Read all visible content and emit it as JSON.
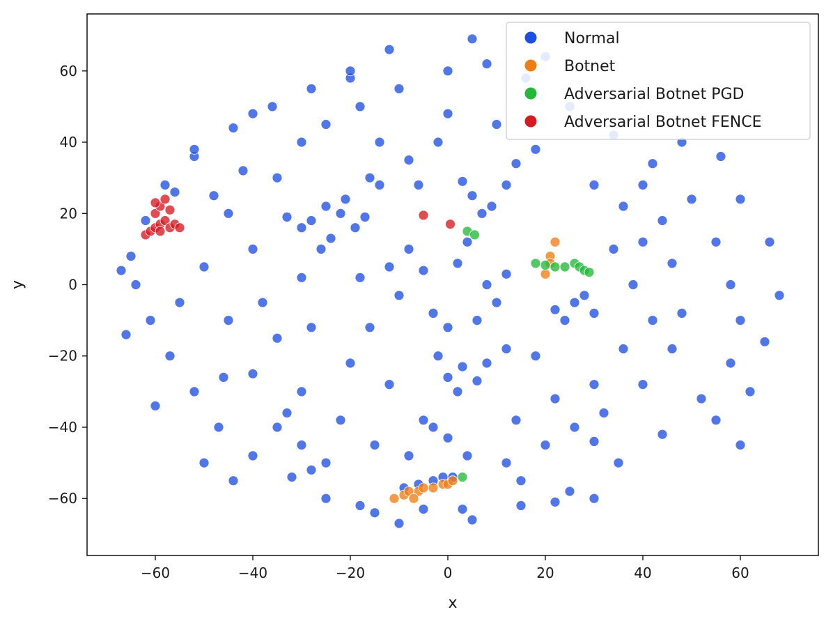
{
  "chart_data": {
    "type": "scatter",
    "title": "",
    "xlabel": "x",
    "ylabel": "y",
    "xlim": [
      -74,
      76
    ],
    "ylim": [
      -76,
      76
    ],
    "xticks": [
      -60,
      -40,
      -20,
      0,
      20,
      40,
      60
    ],
    "yticks": [
      -60,
      -40,
      -20,
      0,
      20,
      40,
      60
    ],
    "xtick_labels": [
      "−60",
      "−40",
      "−20",
      "0",
      "20",
      "40",
      "60"
    ],
    "ytick_labels": [
      "−60",
      "−40",
      "−20",
      "0",
      "20",
      "40",
      "60"
    ],
    "grid": false,
    "legend": {
      "placement": "top-right",
      "entries": [
        "Normal",
        "Botnet",
        "Adversarial Botnet PGD",
        "Adversarial Botnet FENCE"
      ]
    },
    "series": [
      {
        "name": "Normal",
        "color": "#1f4fe0",
        "points": [
          [
            -25,
            22
          ],
          [
            -22,
            20
          ],
          [
            -28,
            18
          ],
          [
            -19,
            16
          ],
          [
            -24,
            13
          ],
          [
            -30,
            16
          ],
          [
            -21,
            24
          ],
          [
            -26,
            10
          ],
          [
            -17,
            19
          ],
          [
            -33,
            19
          ],
          [
            -5,
            4
          ],
          [
            2,
            6
          ],
          [
            8,
            0
          ],
          [
            -10,
            -3
          ],
          [
            -3,
            -8
          ],
          [
            6,
            -10
          ],
          [
            -12,
            5
          ],
          [
            12,
            3
          ],
          [
            0,
            -12
          ],
          [
            -8,
            10
          ],
          [
            4,
            12
          ],
          [
            10,
            -5
          ],
          [
            26,
            -5
          ],
          [
            24,
            -10
          ],
          [
            30,
            -8
          ],
          [
            28,
            -3
          ],
          [
            22,
            -7
          ],
          [
            5,
            25
          ],
          [
            9,
            22
          ],
          [
            12,
            28
          ],
          [
            3,
            29
          ],
          [
            7,
            20
          ],
          [
            3,
            -23
          ],
          [
            6,
            -27
          ],
          [
            0,
            -26
          ],
          [
            8,
            -22
          ],
          [
            2,
            -30
          ],
          [
            -3,
            -40
          ],
          [
            0,
            -43
          ],
          [
            -5,
            -38
          ],
          [
            -9,
            -57
          ],
          [
            -6,
            -56
          ],
          [
            -3,
            -55
          ],
          [
            -1,
            -54
          ],
          [
            1,
            -54
          ],
          [
            -30,
            40
          ],
          [
            -25,
            45
          ],
          [
            -18,
            50
          ],
          [
            -10,
            55
          ],
          [
            0,
            60
          ],
          [
            8,
            62
          ],
          [
            16,
            58
          ],
          [
            25,
            50
          ],
          [
            34,
            42
          ],
          [
            42,
            34
          ],
          [
            50,
            24
          ],
          [
            55,
            12
          ],
          [
            58,
            0
          ],
          [
            60,
            -10
          ],
          [
            58,
            -22
          ],
          [
            52,
            -32
          ],
          [
            44,
            -42
          ],
          [
            35,
            -50
          ],
          [
            25,
            -58
          ],
          [
            15,
            -62
          ],
          [
            5,
            -66
          ],
          [
            -5,
            -63
          ],
          [
            -15,
            -64
          ],
          [
            -25,
            -60
          ],
          [
            -32,
            -54
          ],
          [
            -40,
            -48
          ],
          [
            -47,
            -40
          ],
          [
            -52,
            -30
          ],
          [
            -57,
            -20
          ],
          [
            -61,
            -10
          ],
          [
            -64,
            0
          ],
          [
            -65,
            8
          ],
          [
            -62,
            18
          ],
          [
            -58,
            28
          ],
          [
            -52,
            36
          ],
          [
            -44,
            44
          ],
          [
            -36,
            50
          ],
          [
            -28,
            55
          ],
          [
            -20,
            58
          ],
          [
            -45,
            20
          ],
          [
            -40,
            10
          ],
          [
            -38,
            -5
          ],
          [
            -35,
            -15
          ],
          [
            -40,
            -25
          ],
          [
            -30,
            -30
          ],
          [
            -22,
            -38
          ],
          [
            -15,
            -45
          ],
          [
            -45,
            -10
          ],
          [
            -50,
            5
          ],
          [
            -48,
            25
          ],
          [
            -42,
            32
          ],
          [
            -35,
            30
          ],
          [
            -30,
            2
          ],
          [
            -28,
            -12
          ],
          [
            -20,
            -22
          ],
          [
            -12,
            -28
          ],
          [
            -14,
            40
          ],
          [
            -8,
            35
          ],
          [
            -2,
            40
          ],
          [
            -16,
            30
          ],
          [
            -6,
            28
          ],
          [
            0,
            48
          ],
          [
            10,
            45
          ],
          [
            18,
            38
          ],
          [
            14,
            34
          ],
          [
            30,
            28
          ],
          [
            36,
            22
          ],
          [
            40,
            12
          ],
          [
            38,
            0
          ],
          [
            42,
            -10
          ],
          [
            36,
            -18
          ],
          [
            30,
            -28
          ],
          [
            22,
            -32
          ],
          [
            14,
            -38
          ],
          [
            20,
            -45
          ],
          [
            26,
            -40
          ],
          [
            32,
            -36
          ],
          [
            40,
            -28
          ],
          [
            46,
            -18
          ],
          [
            48,
            -8
          ],
          [
            46,
            6
          ],
          [
            44,
            18
          ],
          [
            40,
            28
          ],
          [
            34,
            10
          ],
          [
            18,
            -20
          ],
          [
            12,
            -18
          ],
          [
            -2,
            -20
          ],
          [
            -16,
            -12
          ],
          [
            -18,
            2
          ],
          [
            -14,
            28
          ],
          [
            -8,
            -48
          ],
          [
            4,
            -48
          ],
          [
            12,
            -50
          ],
          [
            -25,
            -50
          ],
          [
            -35,
            -40
          ],
          [
            -50,
            -50
          ],
          [
            -60,
            -34
          ],
          [
            -66,
            -14
          ],
          [
            -67,
            4
          ],
          [
            -55,
            -5
          ],
          [
            66,
            12
          ],
          [
            68,
            -3
          ],
          [
            65,
            -16
          ],
          [
            62,
            -30
          ],
          [
            60,
            24
          ],
          [
            56,
            36
          ],
          [
            48,
            40
          ],
          [
            20,
            64
          ],
          [
            5,
            69
          ],
          [
            -12,
            66
          ],
          [
            -20,
            60
          ],
          [
            -40,
            48
          ],
          [
            -52,
            38
          ],
          [
            -56,
            26
          ],
          [
            -46,
            -26
          ],
          [
            -30,
            -45
          ],
          [
            -18,
            -62
          ],
          [
            -10,
            -67
          ],
          [
            3,
            -63
          ],
          [
            15,
            -55
          ],
          [
            30,
            -44
          ],
          [
            55,
            -38
          ],
          [
            60,
            -45
          ],
          [
            30,
            -60
          ],
          [
            22,
            -61
          ],
          [
            -44,
            -55
          ],
          [
            -28,
            -52
          ],
          [
            -33,
            -36
          ]
        ]
      },
      {
        "name": "Botnet",
        "color": "#f07d14",
        "points": [
          [
            -11,
            -60
          ],
          [
            -9,
            -59
          ],
          [
            -8,
            -58
          ],
          [
            -6,
            -58
          ],
          [
            -5,
            -57
          ],
          [
            -3,
            -57
          ],
          [
            -1,
            -56
          ],
          [
            0,
            -56
          ],
          [
            1,
            -55
          ],
          [
            -7,
            -60
          ],
          [
            21,
            8
          ],
          [
            21,
            6
          ],
          [
            20,
            3
          ],
          [
            22,
            12
          ]
        ]
      },
      {
        "name": "Adversarial Botnet PGD",
        "color": "#22b83a",
        "points": [
          [
            18,
            6
          ],
          [
            20,
            5.5
          ],
          [
            22,
            5
          ],
          [
            24,
            5
          ],
          [
            26,
            6
          ],
          [
            27,
            5
          ],
          [
            28,
            4
          ],
          [
            29,
            3.5
          ],
          [
            4,
            15
          ],
          [
            5.5,
            14
          ],
          [
            3,
            -54
          ]
        ]
      },
      {
        "name": "Adversarial Botnet FENCE",
        "color": "#d61a24",
        "points": [
          [
            -62,
            14
          ],
          [
            -61,
            15
          ],
          [
            -60,
            16
          ],
          [
            -59,
            17
          ],
          [
            -58,
            18
          ],
          [
            -60,
            20
          ],
          [
            -59,
            22
          ],
          [
            -58,
            24
          ],
          [
            -57,
            16
          ],
          [
            -56,
            17
          ],
          [
            -55,
            16
          ],
          [
            -59,
            15
          ],
          [
            -57,
            21
          ],
          [
            -60,
            23
          ],
          [
            -5,
            19.5
          ],
          [
            0.5,
            17
          ]
        ]
      }
    ]
  }
}
